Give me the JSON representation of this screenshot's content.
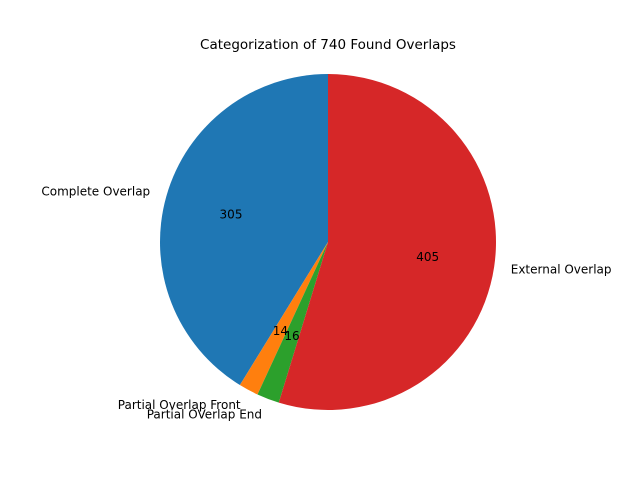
{
  "chart_data": {
    "type": "pie",
    "title": "Categorization of 740 Found Overlaps",
    "start_angle": 90,
    "direction": "counterclockwise",
    "slices": [
      {
        "label": "Complete Overlap",
        "value": 305,
        "color": "#1f77b4"
      },
      {
        "label": "Partial Overlap Front",
        "value": 14,
        "color": "#ff7f0e"
      },
      {
        "label": "Partial OVerlap End",
        "value": 16,
        "color": "#2ca02c"
      },
      {
        "label": "External Overlap",
        "value": 405,
        "color": "#d62728"
      }
    ]
  }
}
